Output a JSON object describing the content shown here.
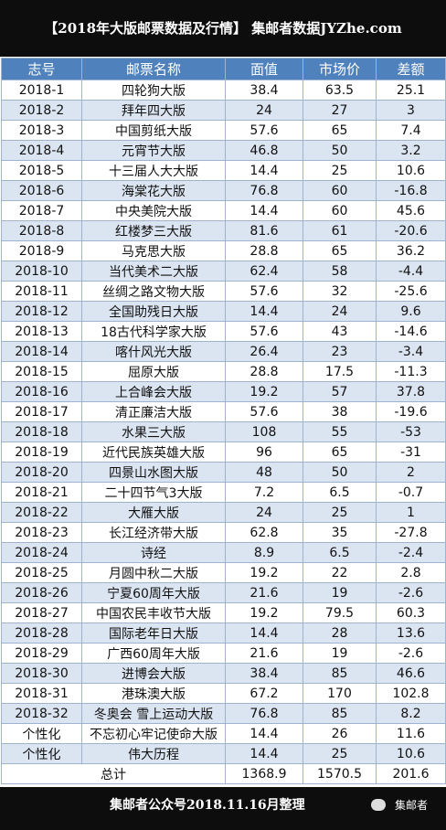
{
  "header": {
    "title": "【2018年大版邮票数据及行情】 集邮者数据JYZhe.com"
  },
  "table": {
    "columns": [
      "志号",
      "邮票名称",
      "面值",
      "市场价",
      "差额"
    ],
    "rows": [
      [
        "2018-1",
        "四轮狗大版",
        38.4,
        63.5,
        25.1
      ],
      [
        "2018-2",
        "拜年四大版",
        24,
        27,
        3
      ],
      [
        "2018-3",
        "中国剪纸大版",
        57.6,
        65,
        7.4
      ],
      [
        "2018-4",
        "元宵节大版",
        46.8,
        50,
        3.2
      ],
      [
        "2018-5",
        "十三届人大大版",
        14.4,
        25,
        10.6
      ],
      [
        "2018-6",
        "海棠花大版",
        76.8,
        60,
        -16.8
      ],
      [
        "2018-7",
        "中央美院大版",
        14.4,
        60,
        45.6
      ],
      [
        "2018-8",
        "红楼梦三大版",
        81.6,
        61,
        -20.6
      ],
      [
        "2018-9",
        "马克思大版",
        28.8,
        65,
        36.2
      ],
      [
        "2018-10",
        "当代美术二大版",
        62.4,
        58,
        -4.4
      ],
      [
        "2018-11",
        "丝绸之路文物大版",
        57.6,
        32,
        -25.6
      ],
      [
        "2018-12",
        "全国助残日大版",
        14.4,
        24,
        9.6
      ],
      [
        "2018-13",
        "18古代科学家大版",
        57.6,
        43,
        -14.6
      ],
      [
        "2018-14",
        "喀什风光大版",
        26.4,
        23,
        -3.4
      ],
      [
        "2018-15",
        "屈原大版",
        28.8,
        17.5,
        -11.3
      ],
      [
        "2018-16",
        "上合峰会大版",
        19.2,
        57,
        37.8
      ],
      [
        "2018-17",
        "清正廉洁大版",
        57.6,
        38,
        -19.6
      ],
      [
        "2018-18",
        "水果三大版",
        108,
        55,
        -53
      ],
      [
        "2018-19",
        "近代民族英雄大版",
        96,
        65,
        -31
      ],
      [
        "2018-20",
        "四景山水图大版",
        48,
        50,
        2
      ],
      [
        "2018-21",
        "二十四节气3大版",
        7.2,
        6.5,
        -0.7
      ],
      [
        "2018-22",
        "大雁大版",
        24,
        25,
        1
      ],
      [
        "2018-23",
        "长江经济带大版",
        62.8,
        35,
        -27.8
      ],
      [
        "2018-24",
        "诗经",
        8.9,
        6.5,
        -2.4
      ],
      [
        "2018-25",
        "月圆中秋二大版",
        19.2,
        22,
        2.8
      ],
      [
        "2018-26",
        "宁夏60周年大版",
        21.6,
        19,
        -2.6
      ],
      [
        "2018-27",
        "中国农民丰收节大版",
        19.2,
        79.5,
        60.3
      ],
      [
        "2018-28",
        "国际老年日大版",
        14.4,
        28,
        13.6
      ],
      [
        "2018-29",
        "广西60周年大版",
        21.6,
        19,
        -2.6
      ],
      [
        "2018-30",
        "进博会大版",
        38.4,
        85,
        46.6
      ],
      [
        "2018-31",
        "港珠澳大版",
        67.2,
        170,
        102.8
      ],
      [
        "2018-32",
        "冬奥会 雪上运动大版",
        76.8,
        85,
        8.2
      ],
      [
        "个性化",
        "不忘初心牢记使命大版",
        14.4,
        26,
        11.6
      ],
      [
        "个性化",
        "伟大历程",
        14.4,
        25,
        10.6
      ]
    ],
    "total": [
      "总计",
      1368.9,
      1570.5,
      201.6
    ]
  },
  "footer": {
    "text": "集邮者公众号2018.11.16月整理",
    "logo": "集邮者"
  }
}
